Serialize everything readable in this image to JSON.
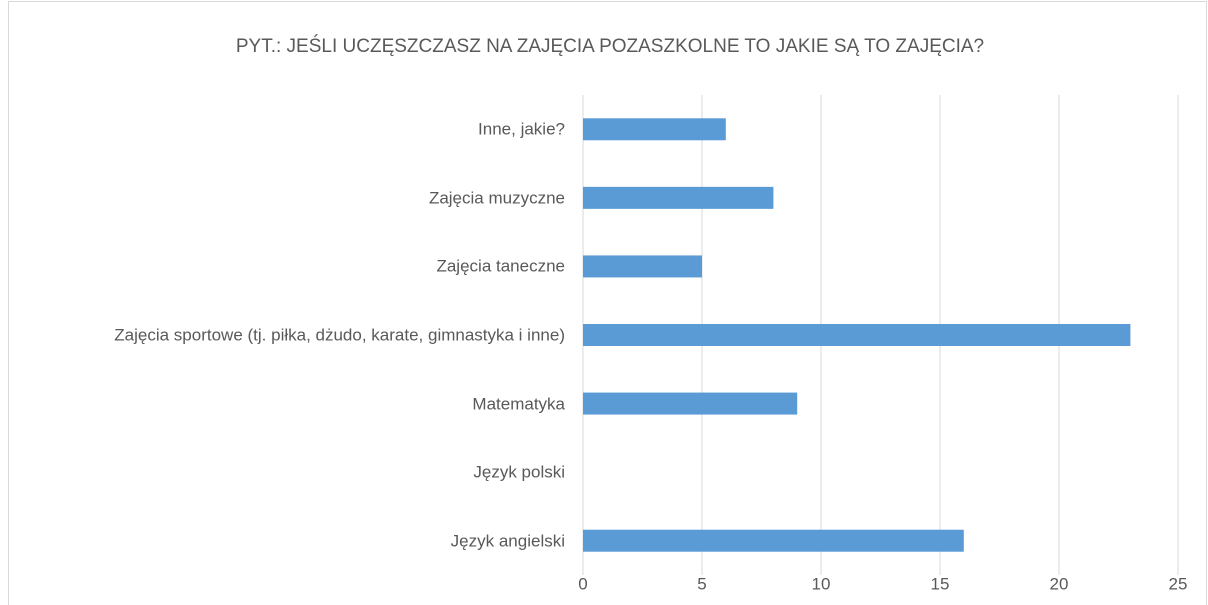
{
  "chart_data": {
    "type": "bar",
    "orientation": "horizontal",
    "title": "PYT.: JEŚLI UCZĘSZCZASZ NA ZAJĘCIA POZASZKOLNE TO JAKIE SĄ TO ZAJĘCIA?",
    "categories": [
      "Język angielski",
      "Język polski",
      "Matematyka",
      "Zajęcia sportowe (tj. piłka, dżudo, karate, gimnastyka  i inne)",
      "Zajęcia taneczne",
      "Zajęcia muzyczne",
      "Inne, jakie?"
    ],
    "values": [
      16,
      0,
      9,
      23,
      5,
      8,
      6
    ],
    "color": "#5b9bd5",
    "xlim": [
      0,
      25
    ],
    "xticks": [
      0,
      5,
      10,
      15,
      20,
      25
    ],
    "grid": true
  }
}
